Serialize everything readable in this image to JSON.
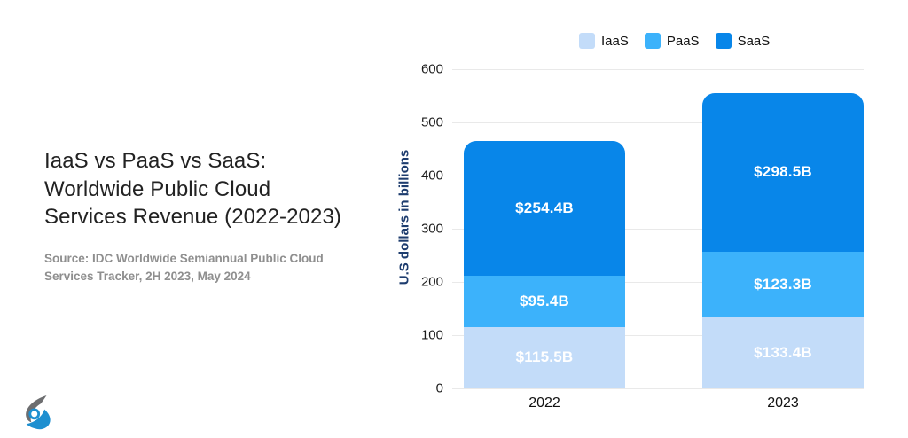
{
  "left_panel": {
    "title": "IaaS vs PaaS vs SaaS:\nWorldwide Public Cloud\nServices Revenue (2022-2023)",
    "source": "Source: IDC Worldwide Semiannual Public Cloud\nServices Tracker, 2H 2023, May 2024",
    "logo": "brand-swirl-logo"
  },
  "chart_data": {
    "type": "bar",
    "stacked": true,
    "title": "",
    "categories": [
      "2022",
      "2023"
    ],
    "series": [
      {
        "name": "IaaS",
        "color": "#c3dcf9",
        "values": [
          115.5,
          133.4
        ],
        "labels": [
          "$115.5B",
          "$133.4B"
        ]
      },
      {
        "name": "PaaS",
        "color": "#3cb2fb",
        "values": [
          95.4,
          123.3
        ],
        "labels": [
          "$95.4B",
          "$123.3B"
        ]
      },
      {
        "name": "SaaS",
        "color": "#0886e9",
        "values": [
          254.4,
          298.5
        ],
        "labels": [
          "$254.4B",
          "$298.5B"
        ]
      }
    ],
    "totals": [
      465.3,
      555.2
    ],
    "xlabel": "",
    "ylabel": "U.S dollars in billions",
    "ylim": [
      0,
      600
    ],
    "y_ticks": [
      0,
      100,
      200,
      300,
      400,
      500,
      600
    ],
    "legend_position": "top-right",
    "grid": "horizontal"
  },
  "colors": {
    "text_dark": "#222222",
    "text_gray": "#8f8f8f",
    "axis_label_navy": "#1d3c6e",
    "gridline": "#e9e9e9",
    "logo_gray": "#6d6e70",
    "logo_blue": "#1e8fd0"
  }
}
